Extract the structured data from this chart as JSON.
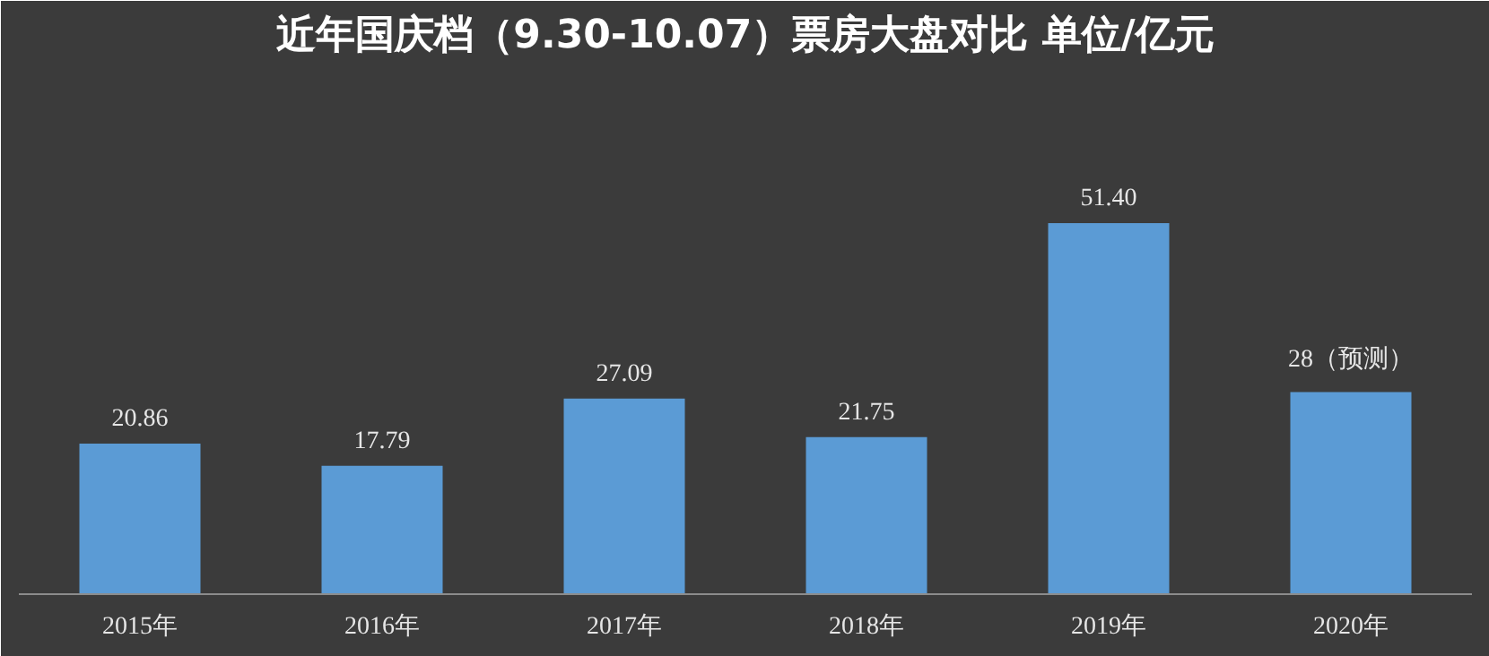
{
  "chart_data": {
    "type": "bar",
    "title": "近年国庆档（9.30-10.07）票房大盘对比 单位/亿元",
    "categories": [
      "2015年",
      "2016年",
      "2017年",
      "2018年",
      "2019年",
      "2020年"
    ],
    "values": [
      20.86,
      17.79,
      27.09,
      21.75,
      51.4,
      28
    ],
    "value_labels": [
      "20.86",
      "17.79",
      "27.09",
      "21.75",
      "51.40",
      "28（预测）"
    ],
    "color": "#5b9bd5"
  }
}
